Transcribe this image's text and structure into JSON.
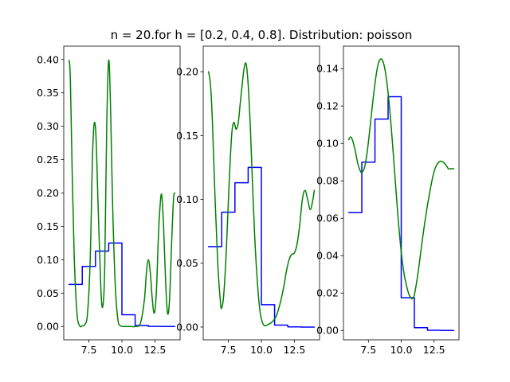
{
  "figure": {
    "title": "n = 20.for h = [0.2, 0.4, 0.8]. Distribution: poisson"
  },
  "colors": {
    "step_series": "#0000ff",
    "kde_series": "#008000",
    "axes": "#000000",
    "background": "#ffffff"
  },
  "chart_data": [
    {
      "type": "line",
      "panel": "h = 0.2",
      "xlim": [
        5.6,
        14.4
      ],
      "ylim": [
        -0.02,
        0.42
      ],
      "xticks": [
        7.5,
        10.0,
        12.5
      ],
      "xtick_labels": [
        "7.5",
        "10.0",
        "12.5"
      ],
      "yticks": [
        0.0,
        0.05,
        0.1,
        0.15,
        0.2,
        0.25,
        0.3,
        0.35,
        0.4
      ],
      "ytick_labels": [
        "0.00",
        "0.05",
        "0.10",
        "0.15",
        "0.20",
        "0.25",
        "0.30",
        "0.35",
        "0.40"
      ],
      "grid": false,
      "series": [
        {
          "kind": "step",
          "color": "#0000ff",
          "x": [
            6,
            7,
            8,
            9,
            10,
            11,
            12,
            13,
            14
          ],
          "y": [
            0.063,
            0.09,
            0.113,
            0.125,
            0.0175,
            0.0015,
            0.0001,
            0.0,
            0.0
          ]
        },
        {
          "kind": "smooth",
          "color": "#008000",
          "x": [
            6.0,
            6.1,
            6.25,
            6.4,
            6.6,
            6.8,
            7.0,
            7.2,
            7.4,
            7.6,
            7.8,
            8.0,
            8.2,
            8.4,
            8.55,
            8.7,
            8.85,
            9.0,
            9.15,
            9.3,
            9.5,
            9.7,
            9.9,
            10.2,
            10.6,
            11.0,
            11.4,
            11.7,
            11.85,
            12.0,
            12.15,
            12.3,
            12.45,
            12.6,
            12.75,
            12.85,
            13.0,
            13.15,
            13.3,
            13.45,
            13.6,
            13.75,
            13.9,
            14.0
          ],
          "y": [
            0.399,
            0.37,
            0.22,
            0.1,
            0.02,
            0.001,
            0.001,
            0.003,
            0.02,
            0.1,
            0.27,
            0.298,
            0.18,
            0.06,
            0.03,
            0.09,
            0.3,
            0.399,
            0.32,
            0.18,
            0.06,
            0.01,
            0.001,
            0.0,
            0.0,
            0.0,
            0.005,
            0.04,
            0.08,
            0.1,
            0.08,
            0.04,
            0.02,
            0.05,
            0.13,
            0.17,
            0.198,
            0.15,
            0.07,
            0.02,
            0.04,
            0.12,
            0.19,
            0.2
          ]
        }
      ]
    },
    {
      "type": "line",
      "panel": "h = 0.4",
      "xlim": [
        5.6,
        14.4
      ],
      "ylim": [
        -0.01,
        0.22
      ],
      "xticks": [
        7.5,
        10.0,
        12.5
      ],
      "xtick_labels": [
        "7.5",
        "10.0",
        "12.5"
      ],
      "yticks": [
        0.0,
        0.05,
        0.1,
        0.15,
        0.2
      ],
      "ytick_labels": [
        "0.00",
        "0.05",
        "0.10",
        "0.15",
        "0.20"
      ],
      "grid": false,
      "series": [
        {
          "kind": "step",
          "color": "#0000ff",
          "x": [
            6,
            7,
            8,
            9,
            10,
            11,
            12,
            13,
            14
          ],
          "y": [
            0.063,
            0.09,
            0.113,
            0.125,
            0.0175,
            0.0015,
            0.0001,
            0.0,
            0.0
          ]
        },
        {
          "kind": "smooth",
          "color": "#008000",
          "x": [
            6.0,
            6.15,
            6.3,
            6.5,
            6.7,
            6.9,
            7.0,
            7.15,
            7.35,
            7.55,
            7.75,
            7.9,
            8.0,
            8.1,
            8.25,
            8.4,
            8.55,
            8.7,
            8.85,
            9.0,
            9.15,
            9.3,
            9.5,
            9.7,
            9.9,
            10.1,
            10.3,
            10.5,
            10.7,
            10.9,
            11.1,
            11.3,
            11.5,
            11.7,
            11.9,
            12.1,
            12.3,
            12.5,
            12.7,
            12.9,
            13.1,
            13.3,
            13.5,
            13.7,
            13.9,
            14.0
          ],
          "y": [
            0.2,
            0.19,
            0.16,
            0.1,
            0.05,
            0.02,
            0.015,
            0.025,
            0.06,
            0.11,
            0.15,
            0.16,
            0.158,
            0.155,
            0.16,
            0.175,
            0.19,
            0.203,
            0.206,
            0.19,
            0.16,
            0.12,
            0.07,
            0.035,
            0.012,
            0.003,
            0.001,
            0.002,
            0.003,
            0.005,
            0.008,
            0.014,
            0.022,
            0.032,
            0.044,
            0.053,
            0.057,
            0.058,
            0.065,
            0.08,
            0.1,
            0.107,
            0.1,
            0.092,
            0.1,
            0.107
          ]
        }
      ]
    },
    {
      "type": "line",
      "panel": "h = 0.8",
      "xlim": [
        5.6,
        14.4
      ],
      "ylim": [
        -0.005,
        0.152
      ],
      "xticks": [
        7.5,
        10.0,
        12.5
      ],
      "xtick_labels": [
        "7.5",
        "10.0",
        "12.5"
      ],
      "yticks": [
        0.0,
        0.02,
        0.04,
        0.06,
        0.08,
        0.1,
        0.12,
        0.14
      ],
      "ytick_labels": [
        "0.00",
        "0.02",
        "0.04",
        "0.06",
        "0.08",
        "0.10",
        "0.12",
        "0.14"
      ],
      "grid": false,
      "series": [
        {
          "kind": "step",
          "color": "#0000ff",
          "x": [
            6,
            7,
            8,
            9,
            10,
            11,
            12,
            13,
            14
          ],
          "y": [
            0.063,
            0.09,
            0.113,
            0.125,
            0.0175,
            0.0015,
            0.0001,
            0.0,
            0.0
          ]
        },
        {
          "kind": "smooth",
          "color": "#008000",
          "x": [
            6.0,
            6.15,
            6.3,
            6.5,
            6.7,
            6.9,
            7.0,
            7.2,
            7.4,
            7.6,
            7.8,
            8.0,
            8.2,
            8.4,
            8.6,
            8.8,
            9.0,
            9.2,
            9.4,
            9.6,
            9.8,
            10.0,
            10.2,
            10.4,
            10.6,
            10.8,
            10.9,
            11.0,
            11.2,
            11.4,
            11.6,
            11.8,
            12.0,
            12.2,
            12.4,
            12.6,
            12.8,
            13.0,
            13.2,
            13.4,
            13.6,
            13.8,
            14.0
          ],
          "y": [
            0.102,
            0.1035,
            0.1015,
            0.096,
            0.089,
            0.085,
            0.0845,
            0.087,
            0.095,
            0.107,
            0.12,
            0.132,
            0.141,
            0.145,
            0.144,
            0.138,
            0.127,
            0.112,
            0.094,
            0.075,
            0.057,
            0.042,
            0.031,
            0.024,
            0.019,
            0.017,
            0.0175,
            0.019,
            0.027,
            0.037,
            0.048,
            0.058,
            0.067,
            0.075,
            0.082,
            0.087,
            0.0895,
            0.0905,
            0.09,
            0.0885,
            0.0865,
            0.0865,
            0.0865
          ]
        }
      ]
    }
  ]
}
